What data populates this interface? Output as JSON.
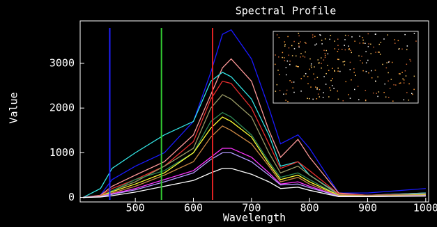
{
  "chart_data": {
    "type": "line",
    "title": "Spectral Profile",
    "x_label": "Wavelength",
    "y_label": "Value",
    "x": [
      410,
      440,
      460,
      500,
      550,
      600,
      630,
      650,
      665,
      700,
      730,
      750,
      780,
      800,
      850,
      900,
      1000
    ],
    "series": [
      {
        "color": "#1a1aff",
        "values": [
          0,
          50,
          400,
          700,
          1000,
          1700,
          2800,
          3650,
          3750,
          3100,
          2000,
          1200,
          1400,
          1100,
          100,
          100,
          200
        ]
      },
      {
        "color": "#ff9999",
        "values": [
          0,
          50,
          250,
          500,
          800,
          1400,
          2300,
          2900,
          3100,
          2600,
          1500,
          900,
          1300,
          900,
          100,
          50,
          100
        ]
      },
      {
        "color": "#33e6e6",
        "values": [
          0,
          200,
          650,
          1000,
          1400,
          1700,
          2600,
          2800,
          2700,
          2200,
          1400,
          700,
          800,
          500,
          80,
          50,
          100
        ]
      },
      {
        "color": "#e62e2e",
        "values": [
          0,
          40,
          200,
          400,
          700,
          1250,
          2200,
          2600,
          2550,
          2000,
          1200,
          650,
          800,
          600,
          80,
          50,
          80
        ]
      },
      {
        "color": "#999966",
        "values": [
          0,
          30,
          150,
          350,
          700,
          1100,
          2000,
          2300,
          2200,
          1800,
          1000,
          550,
          700,
          500,
          60,
          40,
          70
        ]
      },
      {
        "color": "#2e8b57",
        "values": [
          0,
          30,
          150,
          400,
          600,
          1000,
          1700,
          1900,
          1800,
          1400,
          800,
          450,
          550,
          400,
          50,
          30,
          60
        ]
      },
      {
        "color": "#ffff33",
        "values": [
          0,
          30,
          130,
          300,
          550,
          1000,
          1550,
          1800,
          1700,
          1350,
          750,
          400,
          500,
          350,
          50,
          30,
          60
        ]
      },
      {
        "color": "#cc8844",
        "values": [
          0,
          30,
          100,
          250,
          500,
          800,
          1350,
          1600,
          1500,
          1200,
          700,
          350,
          450,
          300,
          40,
          30,
          50
        ]
      },
      {
        "color": "#ff33ff",
        "values": [
          0,
          20,
          80,
          200,
          400,
          600,
          900,
          1100,
          1100,
          900,
          550,
          300,
          350,
          250,
          30,
          20,
          40
        ]
      },
      {
        "color": "#b399ff",
        "values": [
          0,
          20,
          70,
          170,
          350,
          550,
          850,
          1000,
          1000,
          800,
          500,
          280,
          300,
          220,
          30,
          20,
          40
        ]
      },
      {
        "color": "#ffffff",
        "values": [
          0,
          10,
          40,
          120,
          250,
          380,
          550,
          650,
          650,
          520,
          350,
          200,
          230,
          160,
          20,
          20,
          30
        ]
      }
    ],
    "markers": [
      {
        "value": 456,
        "color": "#2020ff"
      },
      {
        "value": 545,
        "color": "#33cc33"
      },
      {
        "value": 633,
        "color": "#dd2222"
      }
    ],
    "xlim": [
      405,
      1005
    ],
    "ylim": [
      -100,
      3950
    ],
    "xticks": [
      500,
      600,
      700,
      800,
      900,
      1000
    ],
    "yticks": [
      0,
      1000,
      2000,
      3000
    ]
  }
}
